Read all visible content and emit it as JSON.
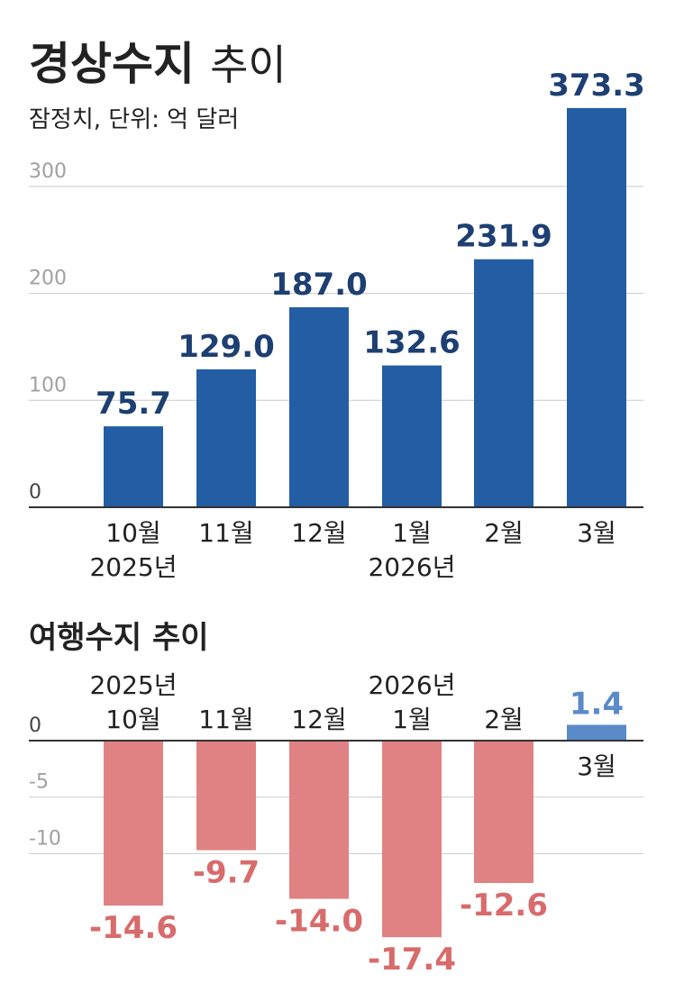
{
  "title": {
    "bold": "경상수지",
    "light": "추이"
  },
  "subtitle": "잠정치, 단위: 억 달러",
  "colors": {
    "positive": "#235da3",
    "positive_label": "#1d3f72",
    "travel_positive": "#5b8ac8",
    "negative": "#e08283",
    "negative_label": "#d86b6b",
    "grid": "#c9c9c9",
    "axis": "#333333"
  },
  "chart_data": [
    {
      "type": "bar",
      "title": "경상수지 추이",
      "subtitle": "잠정치, 단위: 억 달러",
      "categories": [
        "10월",
        "11월",
        "12월",
        "1월",
        "2월",
        "3월"
      ],
      "year_labels": [
        "2025년",
        "",
        "",
        "2026년",
        "",
        ""
      ],
      "values": [
        75.7,
        129.0,
        187.0,
        132.6,
        231.9,
        373.3
      ],
      "value_labels": [
        "75.7",
        "129.0",
        "187.0",
        "132.6",
        "231.9",
        "373.3"
      ],
      "yticks": [
        "0",
        "100",
        "200",
        "300"
      ],
      "ylim": [
        0,
        373.3
      ],
      "grid": true
    },
    {
      "type": "bar",
      "title": "여행수지 추이",
      "categories": [
        "10월",
        "11월",
        "12월",
        "1월",
        "2월",
        "3월"
      ],
      "year_labels": [
        "2025년",
        "",
        "",
        "2026년",
        "",
        ""
      ],
      "values": [
        -14.6,
        -9.7,
        -14.0,
        -17.4,
        -12.6,
        1.4
      ],
      "value_labels": [
        "-14.6",
        "-9.7",
        "-14.0",
        "-17.4",
        "-12.6",
        "1.4"
      ],
      "yticks": [
        "0",
        "-5",
        "-10"
      ],
      "ylim": [
        -17.4,
        1.4
      ],
      "grid": true
    }
  ]
}
